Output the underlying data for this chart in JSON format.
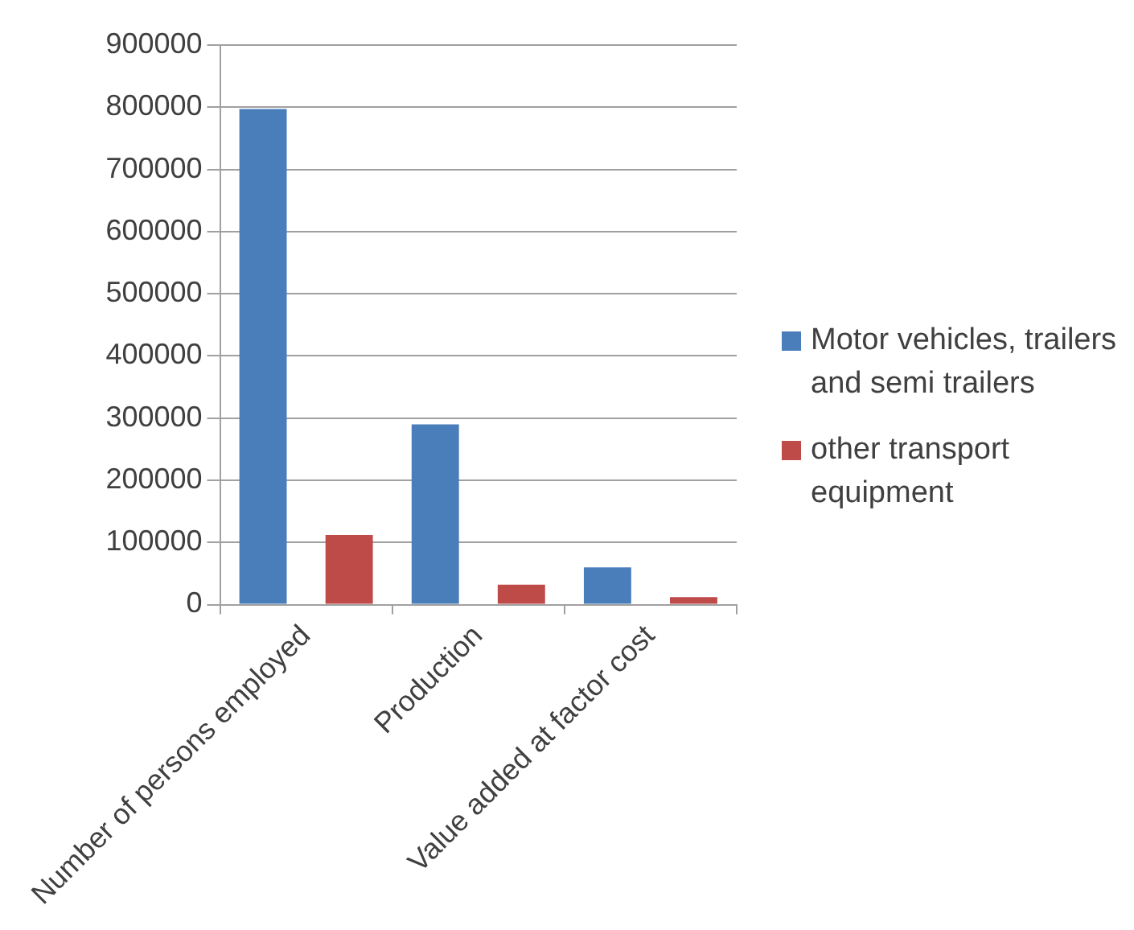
{
  "chart_data": {
    "type": "bar",
    "categories": [
      "Number of persons employed",
      "Production",
      "Value added at factor cost"
    ],
    "series": [
      {
        "name": "Motor vehicles, trailers and semi trailers",
        "color": "#4a7ebb",
        "values": [
          797000,
          290000,
          60000
        ]
      },
      {
        "name": "other transport equipment",
        "color": "#be4b48",
        "values": [
          112000,
          32000,
          12000
        ]
      }
    ],
    "ylim": [
      0,
      900000
    ],
    "yticks": [
      0,
      100000,
      200000,
      300000,
      400000,
      500000,
      600000,
      700000,
      800000,
      900000
    ],
    "grid": "y",
    "legend": "right"
  }
}
